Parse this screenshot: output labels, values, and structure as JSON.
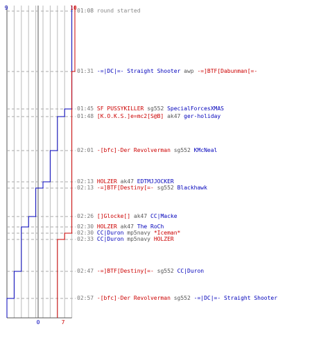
{
  "header": {
    "blue_score_top": "9",
    "red_score_top": "10",
    "blue_score_bottom": "0",
    "red_score_bottom": "7"
  },
  "colors": {
    "team_blue": "#0000bb",
    "team_red": "#cc0000",
    "time": "#777777",
    "weapon": "#555555",
    "grid": "#bbbbbb"
  },
  "blue_steps": [
    9,
    8,
    7,
    6,
    5,
    4,
    3,
    2,
    1,
    0
  ],
  "red_steps": [
    10,
    9,
    8,
    7
  ],
  "events": [
    {
      "time": "01:08",
      "killer": "",
      "killer_team": "",
      "weapon": "",
      "victim": "",
      "victim_team": "",
      "note": "round started"
    },
    {
      "time": "01:31",
      "killer": "-=|DC|=- Straight Shooter",
      "killer_team": "blue",
      "weapon": "awp",
      "victim": "-=]BTF[Dabunman[=-",
      "victim_team": "red",
      "note": ""
    },
    {
      "time": "01:45",
      "killer": "SF PUSSYKILLER",
      "killer_team": "red",
      "weapon": "sg552",
      "victim": "SpecialForcesXMAS",
      "victim_team": "blue",
      "note": ""
    },
    {
      "time": "01:48",
      "killer": "[K.O.K.S.]e=mc2[S@B]",
      "killer_team": "red",
      "weapon": "ak47",
      "victim": "ger-holiday",
      "victim_team": "blue",
      "note": ""
    },
    {
      "time": "02:01",
      "killer": "-[bfc]-Der Revolverman",
      "killer_team": "red",
      "weapon": "sg552",
      "victim": "KMcNeal",
      "victim_team": "blue",
      "note": ""
    },
    {
      "time": "02:13",
      "killer": "HOLZER",
      "killer_team": "red",
      "weapon": "ak47",
      "victim": "EDTMJJOCKER",
      "victim_team": "blue",
      "note": ""
    },
    {
      "time": "02:13",
      "killer": "-=]BTF[Destiny[=-",
      "killer_team": "red",
      "weapon": "sg552",
      "victim": "Blackhawk",
      "victim_team": "blue",
      "note": ""
    },
    {
      "time": "02:26",
      "killer": "[]Glocke[]",
      "killer_team": "red",
      "weapon": "ak47",
      "victim": "CC|Macke",
      "victim_team": "blue",
      "note": ""
    },
    {
      "time": "02:30",
      "killer": "HOLZER",
      "killer_team": "red",
      "weapon": "ak47",
      "victim": "The RoCh",
      "victim_team": "blue",
      "note": ""
    },
    {
      "time": "02:30",
      "killer": "CC|Duron",
      "killer_team": "blue",
      "weapon": "mp5navy",
      "victim": "*Iceman*",
      "victim_team": "red",
      "note": ""
    },
    {
      "time": "02:33",
      "killer": "CC|Duron",
      "killer_team": "blue",
      "weapon": "mp5navy",
      "victim": "HOLZER",
      "victim_team": "red",
      "note": ""
    },
    {
      "time": "02:47",
      "killer": "-=]BTF[Destiny[=-",
      "killer_team": "red",
      "weapon": "sg552",
      "victim": "CC|Duron",
      "victim_team": "blue",
      "note": ""
    },
    {
      "time": "02:57",
      "killer": "-[bfc]-Der Revolverman",
      "killer_team": "red",
      "weapon": "sg552",
      "victim": "-=|DC|=- Straight Shooter",
      "victim_team": "blue",
      "note": ""
    }
  ]
}
